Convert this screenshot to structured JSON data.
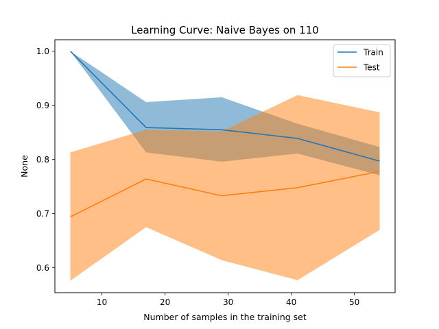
{
  "chart_data": {
    "type": "line",
    "title": "Learning Curve: Naive Bayes on 110",
    "xlabel": "Number of samples in the training set",
    "ylabel": "None",
    "xlim": [
      2.55,
      56.45
    ],
    "ylim": [
      0.554,
      1.0212
    ],
    "x_ticks": [
      10,
      20,
      30,
      40,
      50
    ],
    "y_ticks": [
      0.6,
      0.7,
      0.8,
      0.9,
      1.0
    ],
    "x_tick_labels": [
      "10",
      "20",
      "30",
      "40",
      "50"
    ],
    "y_tick_labels": [
      "0.6",
      "0.7",
      "0.8",
      "0.9",
      "1.0"
    ],
    "legend_position": "top-right",
    "grid": false,
    "x": [
      5,
      17,
      29,
      41,
      54
    ],
    "series": [
      {
        "name": "Train",
        "color": "#1f77b4",
        "band_alpha": 0.5,
        "values": [
          1.0,
          0.859,
          0.855,
          0.839,
          0.797
        ],
        "upper": [
          1.0,
          0.906,
          0.915,
          0.866,
          0.823
        ],
        "lower": [
          1.0,
          0.813,
          0.796,
          0.811,
          0.771
        ]
      },
      {
        "name": "Test",
        "color": "#ff7f0e",
        "band_alpha": 0.5,
        "values": [
          0.694,
          0.764,
          0.733,
          0.748,
          0.778
        ],
        "upper": [
          0.813,
          0.855,
          0.852,
          0.919,
          0.887
        ],
        "lower": [
          0.576,
          0.675,
          0.614,
          0.577,
          0.67
        ]
      }
    ]
  }
}
